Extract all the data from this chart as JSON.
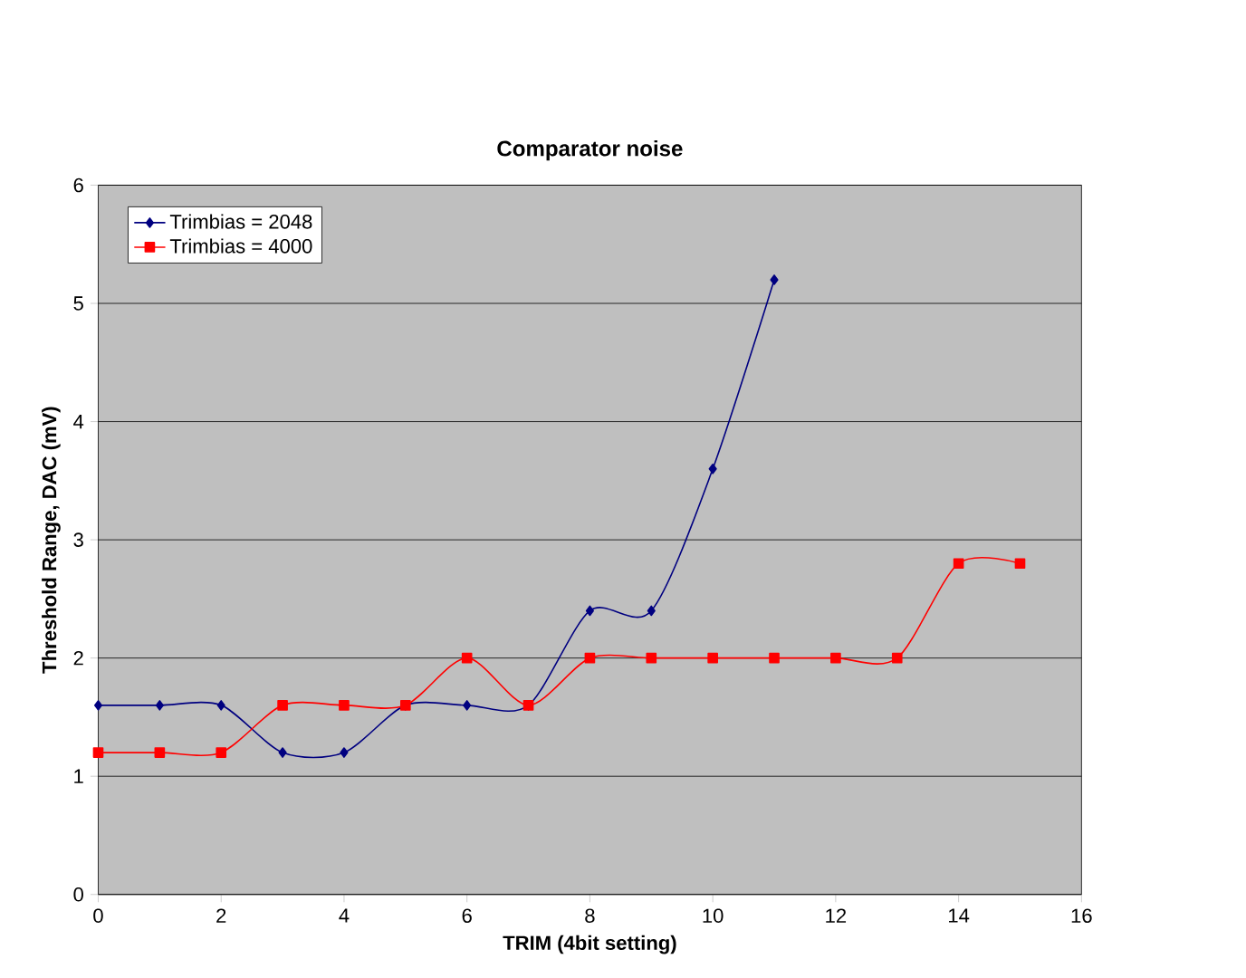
{
  "chart_data": {
    "type": "line",
    "title": "Comparator noise",
    "xlabel": "TRIM (4bit setting)",
    "ylabel": "Threshold Range, DAC (mV)",
    "xlim": [
      0,
      16
    ],
    "xticks": [
      0,
      2,
      4,
      6,
      8,
      10,
      12,
      14,
      16
    ],
    "ylim": [
      0,
      6
    ],
    "yticks": [
      0,
      1,
      2,
      3,
      4,
      5,
      6
    ],
    "grid": "y",
    "legend": "top left",
    "line_style": "solid",
    "series": [
      {
        "name": "Trimbias = 2048",
        "color": "#000080",
        "marker": "diamond",
        "x": [
          0,
          1,
          2,
          3,
          4,
          5,
          6,
          7,
          8,
          9,
          10,
          11
        ],
        "values": [
          1.6,
          1.6,
          1.6,
          1.2,
          1.2,
          1.6,
          1.6,
          1.6,
          2.4,
          2.4,
          3.6,
          5.2
        ]
      },
      {
        "name": "Trimbias = 4000",
        "color": "#ff0000",
        "marker": "square",
        "x": [
          0,
          1,
          2,
          3,
          4,
          5,
          6,
          7,
          8,
          9,
          10,
          11,
          12,
          13,
          14,
          15
        ],
        "values": [
          1.2,
          1.2,
          1.2,
          1.6,
          1.6,
          1.6,
          2.0,
          1.6,
          2.0,
          2.0,
          2.0,
          2.0,
          2.0,
          2.0,
          2.8,
          2.8
        ]
      }
    ]
  }
}
